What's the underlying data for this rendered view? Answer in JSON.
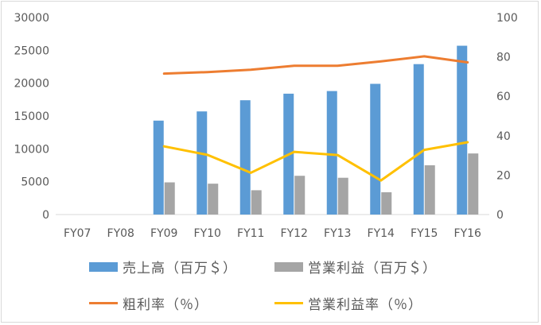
{
  "chart_data": {
    "type": "bar",
    "categories": [
      "FY07",
      "FY08",
      "FY09",
      "FY10",
      "FY11",
      "FY12",
      "FY13",
      "FY14",
      "FY15",
      "FY16"
    ],
    "left_axis": {
      "ylim": [
        0,
        30000
      ],
      "ticks": [
        "30000",
        "25000",
        "20000",
        "15000",
        "10000",
        "5000",
        "0"
      ]
    },
    "right_axis": {
      "ylim": [
        0,
        100
      ],
      "ticks": [
        "100",
        "80",
        "60",
        "40",
        "20",
        "0"
      ]
    },
    "series": [
      {
        "name": "売上高（百万＄）",
        "kind": "bar",
        "axis": "left",
        "color": "#5b9bd5",
        "values": [
          null,
          null,
          14300,
          15700,
          17400,
          18400,
          18800,
          19900,
          22900,
          25700
        ]
      },
      {
        "name": "営業利益（百万＄）",
        "kind": "bar",
        "axis": "left",
        "color": "#a5a5a5",
        "values": [
          null,
          null,
          4900,
          4700,
          3700,
          5900,
          5600,
          3400,
          7500,
          9300
        ]
      },
      {
        "name": "粗利率（％）",
        "kind": "line",
        "axis": "right",
        "color": "#ed7d31",
        "values": [
          null,
          null,
          71.5,
          72.3,
          73.5,
          75.5,
          75.5,
          77.7,
          80.3,
          77.2
        ]
      },
      {
        "name": "営業利益率（％）",
        "kind": "line",
        "axis": "right",
        "color": "#ffc000",
        "values": [
          null,
          null,
          34.6,
          30.3,
          21.2,
          31.8,
          30.2,
          17.3,
          32.8,
          36.7
        ]
      }
    ],
    "grid": false,
    "legend_position": "bottom"
  }
}
